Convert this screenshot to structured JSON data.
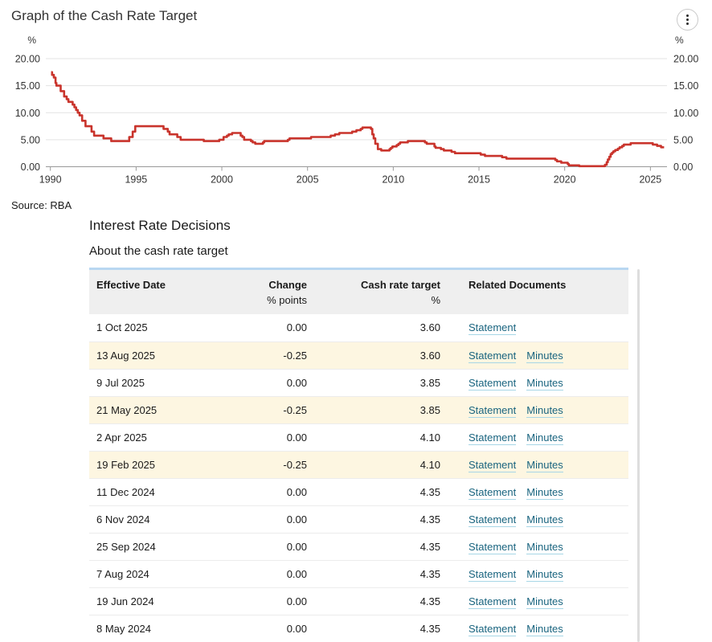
{
  "header": {
    "title": "Graph of the Cash Rate Target",
    "menu_icon": "kebab-menu-icon"
  },
  "source": "Source: RBA",
  "section": {
    "title": "Interest Rate Decisions",
    "subtitle": "About the cash rate target"
  },
  "colors": {
    "line": "#c9342c",
    "grid": "#e3e3e3",
    "axis": "#999999",
    "axis_text": "#333333",
    "link": "#19647f",
    "link_underline": "#a7d6e6",
    "row_highlight": "#fdf6e1",
    "header_bg": "#efefef",
    "header_top_border": "#b9d7f1"
  },
  "chart_data": {
    "type": "line",
    "title": "Graph of the Cash Rate Target",
    "ylabel_left": "%",
    "ylabel_right": "%",
    "xlim": [
      1989.7,
      2026.0
    ],
    "ylim": [
      0,
      20
    ],
    "x_ticks": [
      1990,
      1995,
      2000,
      2005,
      2010,
      2015,
      2020,
      2025
    ],
    "y_ticks": [
      0,
      5,
      10,
      15,
      20
    ],
    "y_tick_labels": [
      "0.00",
      "5.00",
      "10.00",
      "15.00",
      "20.00"
    ],
    "grid": true,
    "legend": false,
    "series": [
      {
        "name": "Cash rate target",
        "step": true,
        "x_end": 2025.8,
        "points": [
          [
            1990.04,
            17.5
          ],
          [
            1990.1,
            17.0
          ],
          [
            1990.2,
            16.5
          ],
          [
            1990.3,
            15.5
          ],
          [
            1990.35,
            15.0
          ],
          [
            1990.6,
            14.0
          ],
          [
            1990.8,
            13.0
          ],
          [
            1990.95,
            12.5
          ],
          [
            1991.05,
            12.0
          ],
          [
            1991.3,
            11.5
          ],
          [
            1991.4,
            11.0
          ],
          [
            1991.5,
            10.5
          ],
          [
            1991.6,
            10.0
          ],
          [
            1991.7,
            9.5
          ],
          [
            1991.85,
            8.5
          ],
          [
            1992.05,
            7.5
          ],
          [
            1992.4,
            6.5
          ],
          [
            1992.55,
            5.75
          ],
          [
            1993.1,
            5.25
          ],
          [
            1993.55,
            4.75
          ],
          [
            1994.6,
            5.5
          ],
          [
            1994.8,
            6.5
          ],
          [
            1994.95,
            7.5
          ],
          [
            1996.6,
            7.0
          ],
          [
            1996.85,
            6.5
          ],
          [
            1996.95,
            6.0
          ],
          [
            1997.4,
            5.5
          ],
          [
            1997.6,
            5.0
          ],
          [
            1998.95,
            4.75
          ],
          [
            1999.85,
            5.0
          ],
          [
            2000.1,
            5.5
          ],
          [
            2000.3,
            5.75
          ],
          [
            2000.4,
            6.0
          ],
          [
            2000.6,
            6.25
          ],
          [
            2001.1,
            5.75
          ],
          [
            2001.2,
            5.5
          ],
          [
            2001.3,
            5.0
          ],
          [
            2001.7,
            4.75
          ],
          [
            2001.8,
            4.5
          ],
          [
            2001.95,
            4.25
          ],
          [
            2002.4,
            4.5
          ],
          [
            2002.47,
            4.75
          ],
          [
            2003.85,
            5.0
          ],
          [
            2003.95,
            5.25
          ],
          [
            2005.2,
            5.5
          ],
          [
            2006.35,
            5.75
          ],
          [
            2006.6,
            6.0
          ],
          [
            2006.85,
            6.25
          ],
          [
            2007.6,
            6.5
          ],
          [
            2007.85,
            6.75
          ],
          [
            2008.1,
            7.0
          ],
          [
            2008.2,
            7.25
          ],
          [
            2008.7,
            7.0
          ],
          [
            2008.78,
            6.0
          ],
          [
            2008.86,
            5.25
          ],
          [
            2008.95,
            4.25
          ],
          [
            2009.1,
            3.25
          ],
          [
            2009.3,
            3.0
          ],
          [
            2009.78,
            3.25
          ],
          [
            2009.86,
            3.5
          ],
          [
            2009.95,
            3.75
          ],
          [
            2010.2,
            4.0
          ],
          [
            2010.3,
            4.25
          ],
          [
            2010.4,
            4.5
          ],
          [
            2010.85,
            4.75
          ],
          [
            2011.85,
            4.5
          ],
          [
            2011.95,
            4.25
          ],
          [
            2012.4,
            3.75
          ],
          [
            2012.47,
            3.5
          ],
          [
            2012.78,
            3.25
          ],
          [
            2012.95,
            3.0
          ],
          [
            2013.4,
            2.75
          ],
          [
            2013.6,
            2.5
          ],
          [
            2015.1,
            2.25
          ],
          [
            2015.35,
            2.0
          ],
          [
            2016.35,
            1.75
          ],
          [
            2016.6,
            1.5
          ],
          [
            2019.45,
            1.25
          ],
          [
            2019.55,
            1.0
          ],
          [
            2019.8,
            0.75
          ],
          [
            2020.18,
            0.5
          ],
          [
            2020.24,
            0.25
          ],
          [
            2020.85,
            0.1
          ],
          [
            2022.35,
            0.35
          ],
          [
            2022.45,
            0.85
          ],
          [
            2022.52,
            1.35
          ],
          [
            2022.6,
            1.85
          ],
          [
            2022.68,
            2.35
          ],
          [
            2022.76,
            2.6
          ],
          [
            2022.84,
            2.85
          ],
          [
            2022.95,
            3.1
          ],
          [
            2023.1,
            3.35
          ],
          [
            2023.2,
            3.6
          ],
          [
            2023.35,
            3.85
          ],
          [
            2023.45,
            4.1
          ],
          [
            2023.85,
            4.35
          ],
          [
            2025.14,
            4.1
          ],
          [
            2025.39,
            3.85
          ],
          [
            2025.62,
            3.6
          ]
        ]
      }
    ]
  },
  "table": {
    "columns": [
      {
        "label": "Effective Date",
        "sub": ""
      },
      {
        "label": "Change",
        "sub": "% points"
      },
      {
        "label": "Cash rate target",
        "sub": "%"
      },
      {
        "label": "Related Documents",
        "sub": ""
      }
    ],
    "rows": [
      {
        "date": "1 Oct 2025",
        "change": "0.00",
        "target": "3.60",
        "links": [
          "Statement"
        ],
        "highlight": false
      },
      {
        "date": "13 Aug 2025",
        "change": "-0.25",
        "target": "3.60",
        "links": [
          "Statement",
          "Minutes"
        ],
        "highlight": true
      },
      {
        "date": "9 Jul 2025",
        "change": "0.00",
        "target": "3.85",
        "links": [
          "Statement",
          "Minutes"
        ],
        "highlight": false
      },
      {
        "date": "21 May 2025",
        "change": "-0.25",
        "target": "3.85",
        "links": [
          "Statement",
          "Minutes"
        ],
        "highlight": true
      },
      {
        "date": "2 Apr 2025",
        "change": "0.00",
        "target": "4.10",
        "links": [
          "Statement",
          "Minutes"
        ],
        "highlight": false
      },
      {
        "date": "19 Feb 2025",
        "change": "-0.25",
        "target": "4.10",
        "links": [
          "Statement",
          "Minutes"
        ],
        "highlight": true
      },
      {
        "date": "11 Dec 2024",
        "change": "0.00",
        "target": "4.35",
        "links": [
          "Statement",
          "Minutes"
        ],
        "highlight": false
      },
      {
        "date": "6 Nov 2024",
        "change": "0.00",
        "target": "4.35",
        "links": [
          "Statement",
          "Minutes"
        ],
        "highlight": false
      },
      {
        "date": "25 Sep 2024",
        "change": "0.00",
        "target": "4.35",
        "links": [
          "Statement",
          "Minutes"
        ],
        "highlight": false
      },
      {
        "date": "7 Aug 2024",
        "change": "0.00",
        "target": "4.35",
        "links": [
          "Statement",
          "Minutes"
        ],
        "highlight": false
      },
      {
        "date": "19 Jun 2024",
        "change": "0.00",
        "target": "4.35",
        "links": [
          "Statement",
          "Minutes"
        ],
        "highlight": false
      },
      {
        "date": "8 May 2024",
        "change": "0.00",
        "target": "4.35",
        "links": [
          "Statement",
          "Minutes"
        ],
        "highlight": false
      }
    ]
  }
}
